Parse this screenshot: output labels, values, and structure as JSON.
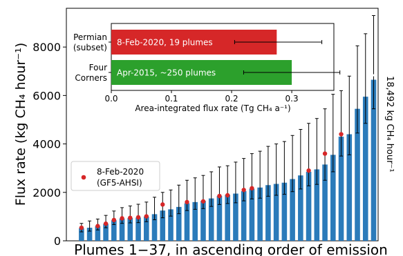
{
  "chart_data": [
    {
      "type": "bar",
      "xlabel": "Plumes 1−37, in ascending order of emission",
      "ylabel": "Flux rate (kg CH₄ hour⁻¹)",
      "ylim": [
        0,
        9600
      ],
      "yticks": [
        0,
        2000,
        4000,
        6000,
        8000
      ],
      "bar_color": "#2b7bba",
      "marker_color": "#d62728",
      "legend": {
        "position": "center-left",
        "entries": [
          {
            "label_line1": "8-Feb-2020",
            "label_line2": "(GF5-AHSI)"
          }
        ]
      },
      "truncated_bar_annotation": "18,492 kg CH₄ hour⁻¹",
      "values": [
        520,
        540,
        600,
        700,
        850,
        920,
        940,
        960,
        1000,
        1100,
        1250,
        1300,
        1400,
        1550,
        1600,
        1650,
        1750,
        1850,
        1900,
        1950,
        2050,
        2150,
        2200,
        2300,
        2350,
        2400,
        2550,
        2700,
        2850,
        2950,
        3150,
        3550,
        4300,
        4400,
        5450,
        5950,
        6650
      ],
      "err_low": [
        150,
        140,
        150,
        160,
        180,
        200,
        200,
        210,
        210,
        230,
        300,
        280,
        280,
        300,
        300,
        320,
        330,
        350,
        360,
        380,
        400,
        420,
        440,
        460,
        470,
        480,
        520,
        560,
        580,
        620,
        650,
        700,
        800,
        850,
        1000,
        1100,
        1200
      ],
      "err_high": [
        200,
        280,
        300,
        350,
        380,
        450,
        500,
        550,
        600,
        700,
        750,
        800,
        900,
        950,
        1000,
        1050,
        1100,
        1200,
        1200,
        1300,
        1350,
        1450,
        1500,
        1600,
        1650,
        1700,
        1800,
        1900,
        2000,
        2100,
        2300,
        2500,
        1900,
        2400,
        2600,
        2600,
        2650
      ],
      "markers": [
        {
          "plume": 1,
          "value": 540
        },
        {
          "plume": 3,
          "value": 610
        },
        {
          "plume": 4,
          "value": 710
        },
        {
          "plume": 5,
          "value": 860
        },
        {
          "plume": 6,
          "value": 930
        },
        {
          "plume": 7,
          "value": 950
        },
        {
          "plume": 8,
          "value": 970
        },
        {
          "plume": 9,
          "value": 1010
        },
        {
          "plume": 11,
          "value": 1500
        },
        {
          "plume": 14,
          "value": 1600
        },
        {
          "plume": 16,
          "value": 1630
        },
        {
          "plume": 18,
          "value": 1850
        },
        {
          "plume": 19,
          "value": 1880
        },
        {
          "plume": 21,
          "value": 2100
        },
        {
          "plume": 22,
          "value": 2170
        },
        {
          "plume": 29,
          "value": 2900
        },
        {
          "plume": 31,
          "value": 3600
        },
        {
          "plume": 33,
          "value": 4400
        }
      ]
    },
    {
      "type": "bar",
      "orientation": "horizontal",
      "xlabel": "Area-integrated flux rate (Tg CH₄ a⁻¹)",
      "xlim": [
        0,
        0.37
      ],
      "xticks": [
        "0.0",
        "0.1",
        "0.2",
        "0.3"
      ],
      "bars": [
        {
          "category_line1": "Permian",
          "category_line2": "(subset)",
          "value": 0.275,
          "err_low": 0.205,
          "err_high": 0.35,
          "label": "8-Feb-2020, 19 plumes",
          "color": "#d62728"
        },
        {
          "category_line1": "Four",
          "category_line2": "Corners",
          "value": 0.3,
          "err_low": 0.22,
          "err_high": 0.38,
          "label": "Apr-2015, ~250 plumes",
          "color": "#2ca02c"
        }
      ]
    }
  ]
}
